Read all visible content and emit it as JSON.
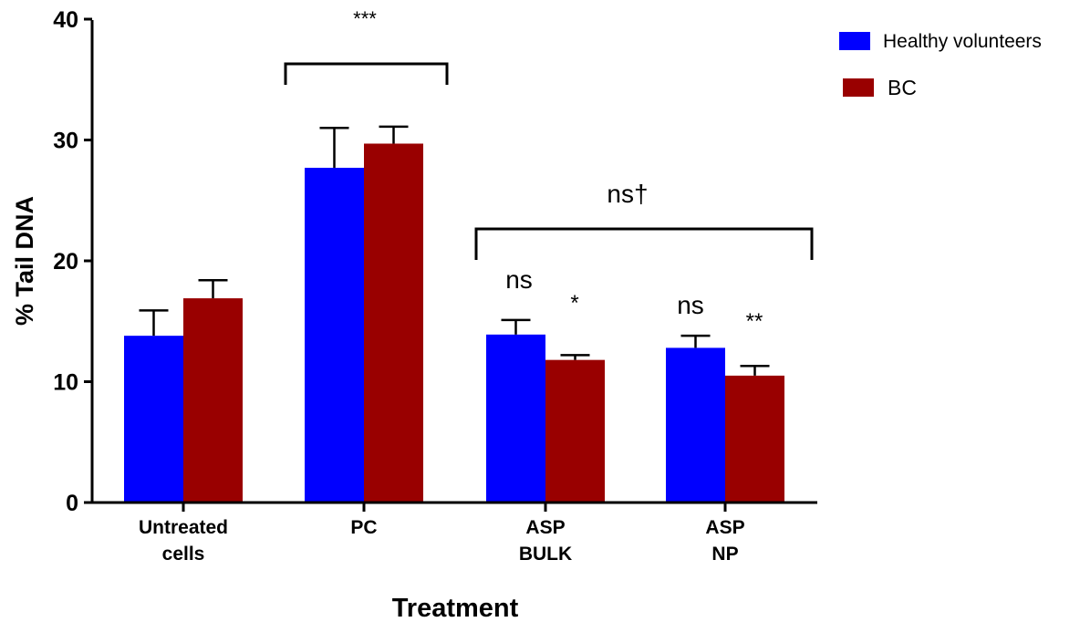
{
  "chart_data": {
    "type": "bar",
    "title": "",
    "xlabel": "Treatment",
    "ylabel": "% Tail DNA",
    "ylim": [
      0,
      40
    ],
    "yticks": [
      "0",
      "10",
      "20",
      "30",
      "40"
    ],
    "categories": [
      [
        "Untreated",
        "cells"
      ],
      [
        "PC"
      ],
      [
        "ASP",
        "BULK"
      ],
      [
        "ASP",
        "NP"
      ]
    ],
    "series": [
      {
        "name": "Healthy volunteers",
        "color": "#0000ff",
        "values": [
          13.8,
          27.7,
          13.9,
          12.8
        ],
        "errors": [
          2.1,
          3.3,
          1.2,
          1.0
        ]
      },
      {
        "name": "BC",
        "color": "#990000",
        "values": [
          16.9,
          29.7,
          11.8,
          10.5
        ],
        "errors": [
          1.5,
          1.4,
          0.4,
          0.8
        ]
      }
    ],
    "legend_position": "top-right",
    "annotations": {
      "pc_bracket_label": "***",
      "asp_bracket_label": "ns†",
      "bulk_hv": "ns",
      "bulk_bc": "*",
      "np_hv": "ns",
      "np_bc": "**"
    }
  }
}
